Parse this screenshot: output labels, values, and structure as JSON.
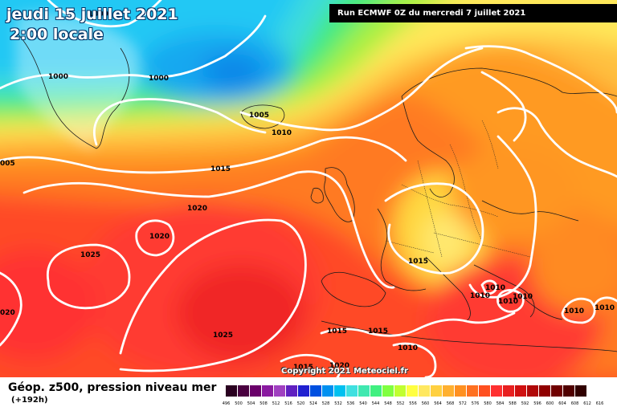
{
  "header": {
    "date_title": "jeudi 15 juillet 2021",
    "time_title": "2:00 locale",
    "run_info": "Run ECMWF 0Z du mercredi 7 juillet 2021"
  },
  "map": {
    "field": "Géop. z500, pression niveau mer",
    "isobar_labels": [
      "1000",
      "1000",
      "1000",
      "1005",
      "1010",
      "1015",
      "005",
      "1020",
      "1020",
      "1025",
      "020",
      "1025",
      "1015",
      "1015",
      "1010",
      "1015",
      "1020",
      "1010",
      "1010",
      "1010",
      "1015",
      "1010",
      "1010",
      "1010"
    ],
    "copyright": "Copyright 2021 Meteociel.fr"
  },
  "footer": {
    "title": "Géop. z500, pression niveau mer",
    "forecast_hour": "(+192h)"
  },
  "legend": {
    "values": [
      "496",
      "500",
      "504",
      "508",
      "512",
      "516",
      "520",
      "524",
      "528",
      "532",
      "536",
      "540",
      "544",
      "548",
      "552",
      "556",
      "560",
      "564",
      "568",
      "572",
      "576",
      "580",
      "584",
      "588",
      "592",
      "596",
      "600",
      "604",
      "608",
      "612",
      "616"
    ],
    "colors": [
      "#2a0020",
      "#4a0040",
      "#6a006a",
      "#8a1aa0",
      "#a040c0",
      "#6020c0",
      "#2020d0",
      "#0050e0",
      "#0090f0",
      "#00c0f0",
      "#40e0e0",
      "#40e8b0",
      "#40f080",
      "#80ff40",
      "#c0ff30",
      "#ffff40",
      "#ffe860",
      "#ffd040",
      "#ffb030",
      "#ff9020",
      "#ff7020",
      "#ff5020",
      "#ff3030",
      "#e82020",
      "#d01010",
      "#b00808",
      "#900000",
      "#700000",
      "#500000",
      "#300000"
    ]
  }
}
